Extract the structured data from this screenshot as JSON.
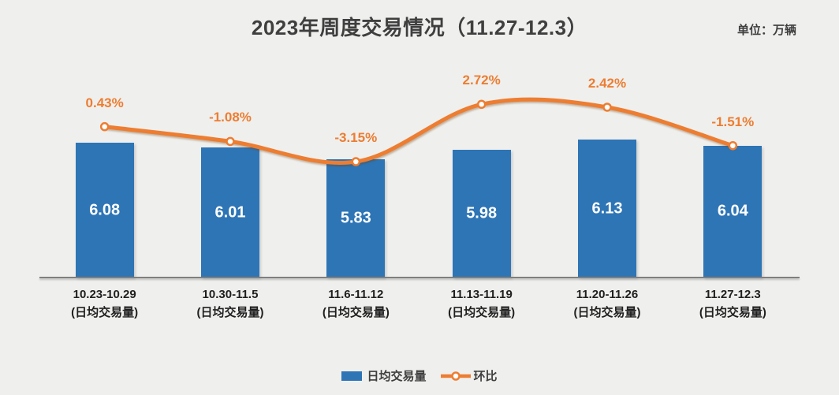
{
  "title": "2023年周度交易情况（11.27-12.3）",
  "unit_label": "单位：万辆",
  "legend": {
    "bar_label": "日均交易量",
    "line_label": "环比"
  },
  "colors": {
    "background": "#efefed",
    "bar": "#2e75b6",
    "line": "#ed7d31",
    "title_text": "#3f3f3f",
    "axis_line": "#7f7f7f",
    "x_label_text": "#1f1f1f",
    "bar_value_text": "#ffffff"
  },
  "chart_data": {
    "type": "bar",
    "combo": "bar+line",
    "title": "2023年周度交易情况（11.27-12.3）",
    "unit": "万辆",
    "categories": [
      "10.23-10.29",
      "10.30-11.5",
      "11.6-11.12",
      "11.13-11.19",
      "11.20-11.26",
      "11.27-12.3"
    ],
    "category_sublabel": "(日均交易量)",
    "series": [
      {
        "name": "日均交易量",
        "type": "bar",
        "values": [
          6.08,
          6.01,
          5.83,
          5.98,
          6.13,
          6.04
        ],
        "value_labels": [
          "6.08",
          "6.01",
          "5.83",
          "5.98",
          "6.13",
          "6.04"
        ]
      },
      {
        "name": "环比",
        "type": "line",
        "values_pct": [
          0.43,
          -1.08,
          -3.15,
          2.72,
          2.42,
          -1.51
        ],
        "point_labels": [
          "0.43%",
          "-1.08%",
          "-3.15%",
          "2.72%",
          "2.42%",
          "-1.51%"
        ]
      }
    ],
    "grid": false,
    "legend_position": "bottom",
    "y_axis_visible": false,
    "smooth_line": true
  }
}
